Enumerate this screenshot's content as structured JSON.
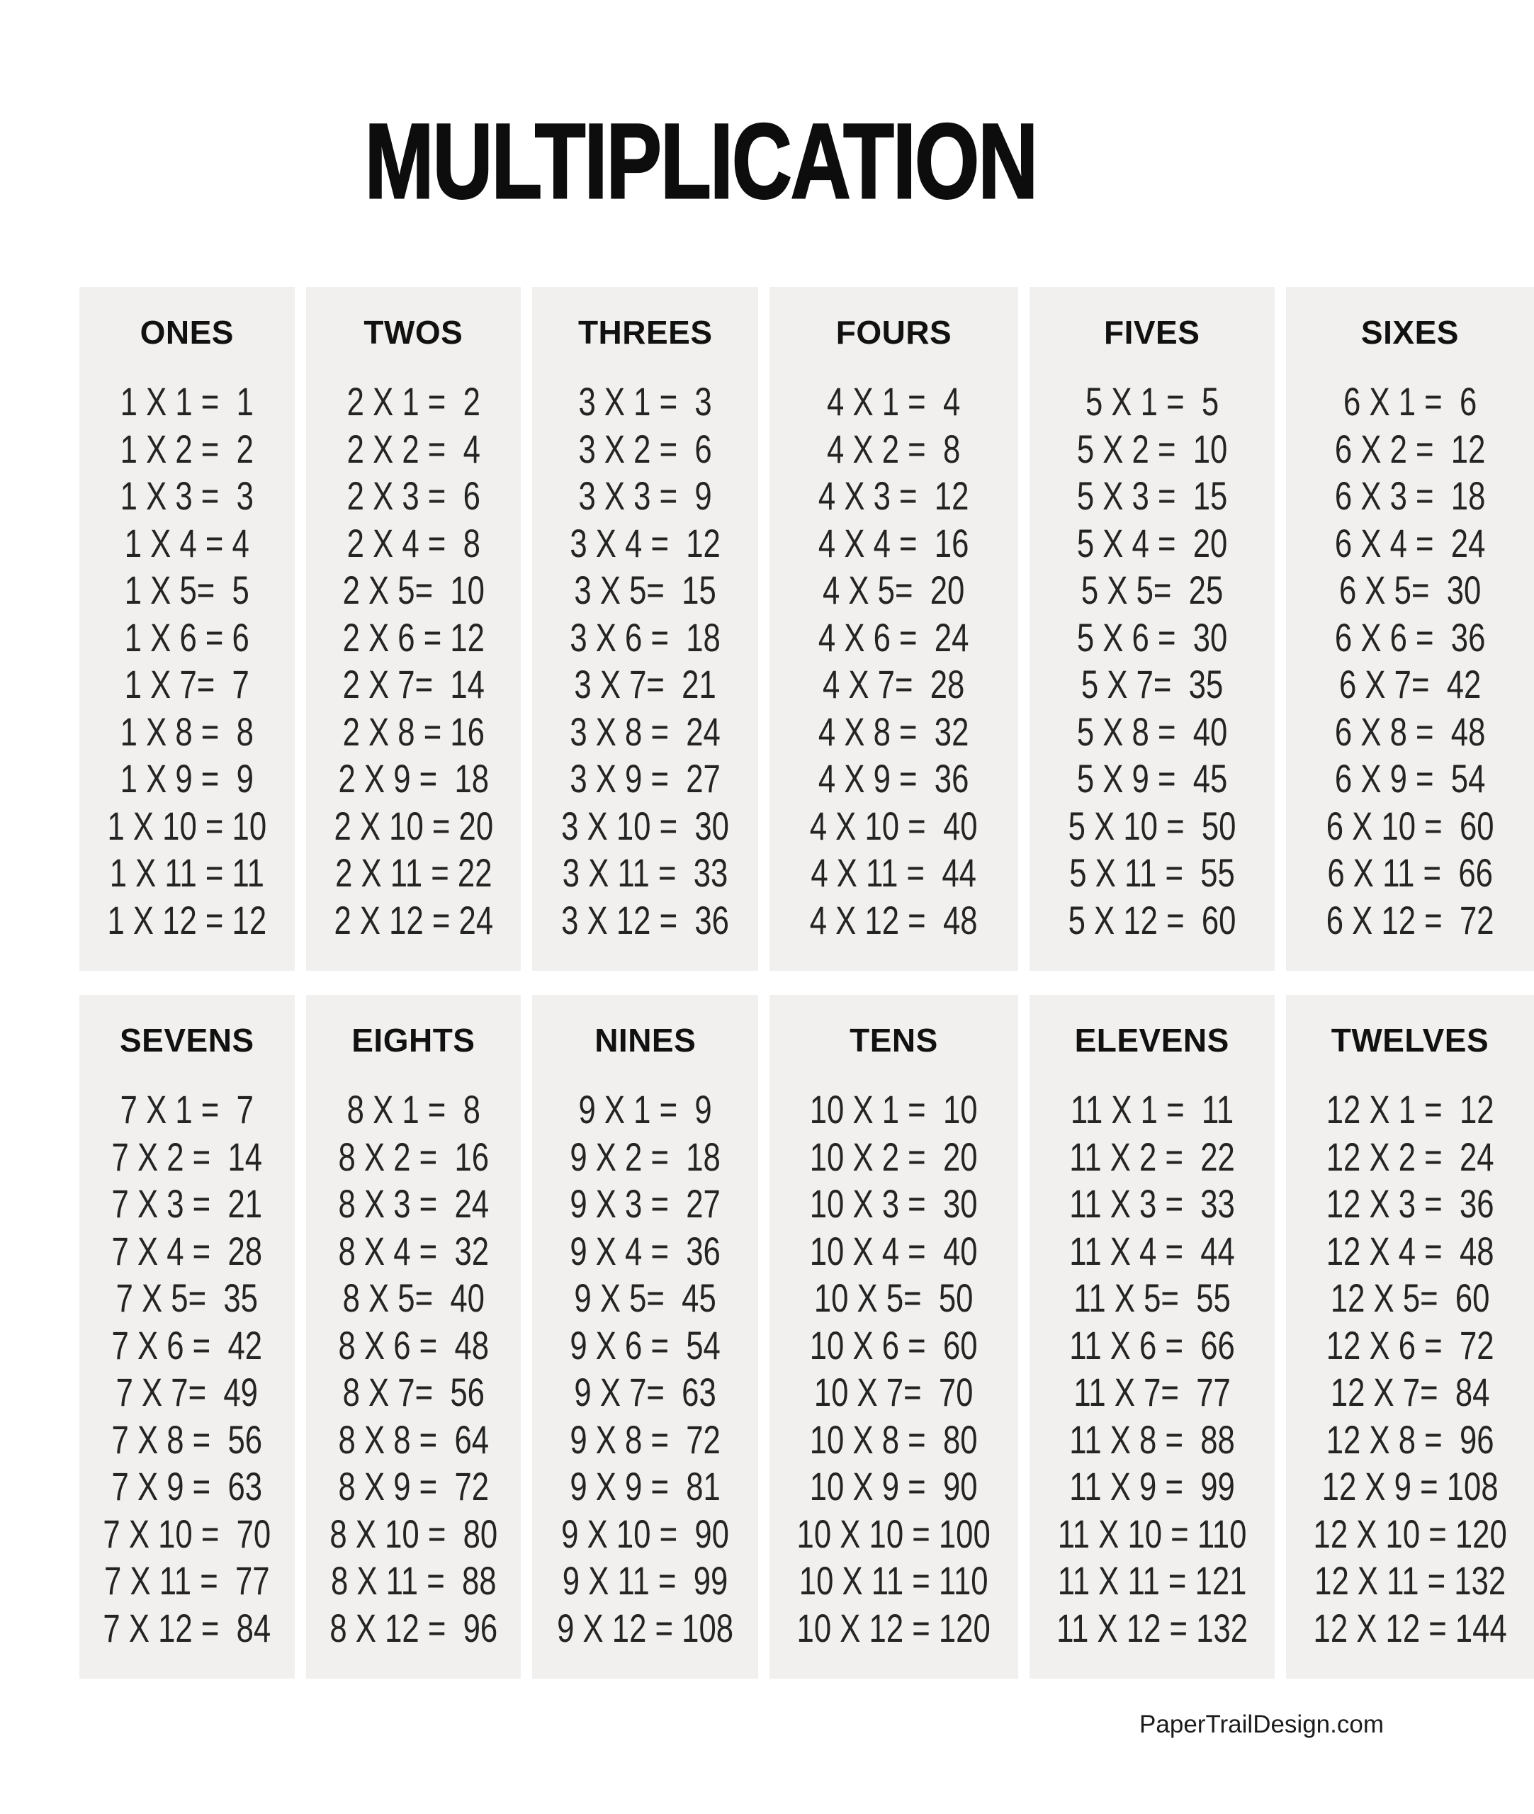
{
  "title": "MULTIPLICATION",
  "footer": {
    "credit": "PaperTrailDesign.com"
  },
  "colors": {
    "page_bg": "#ffffff",
    "panel_bg": "#f1f0ee",
    "title_text": "#0d0d0d",
    "body_text": "#242424"
  },
  "groups": [
    {
      "heading": "ONES",
      "equations": [
        "1 X 1 =  1",
        "1 X 2 =  2",
        "1 X 3 =  3",
        "1 X 4 = 4",
        "1 X 5=  5",
        "1 X 6 = 6",
        "1 X 7=  7",
        "1 X 8 =  8",
        "1 X 9 =  9",
        "1 X 10 = 10",
        "1 X 11 = 11",
        "1 X 12 = 12"
      ]
    },
    {
      "heading": "TWOS",
      "equations": [
        "2 X 1 =  2",
        "2 X 2 =  4",
        "2 X 3 =  6",
        "2 X 4 =  8",
        "2 X 5=  10",
        "2 X 6 = 12",
        "2 X 7=  14",
        "2 X 8 = 16",
        "2 X 9 =  18",
        "2 X 10 = 20",
        "2 X 11 = 22",
        "2 X 12 = 24"
      ]
    },
    {
      "heading": "THREES",
      "equations": [
        "3 X 1 =  3",
        "3 X 2 =  6",
        "3 X 3 =  9",
        "3 X 4 =  12",
        "3 X 5=  15",
        "3 X 6 =  18",
        "3 X 7=  21",
        "3 X 8 =  24",
        "3 X 9 =  27",
        "3 X 10 =  30",
        "3 X 11 =  33",
        "3 X 12 =  36"
      ]
    },
    {
      "heading": "FOURS",
      "equations": [
        "4 X 1 =  4",
        "4 X 2 =  8",
        "4 X 3 =  12",
        "4 X 4 =  16",
        "4 X 5=  20",
        "4 X 6 =  24",
        "4 X 7=  28",
        "4 X 8 =  32",
        "4 X 9 =  36",
        "4 X 10 =  40",
        "4 X 11 =  44",
        "4 X 12 =  48"
      ]
    },
    {
      "heading": "FIVES",
      "equations": [
        "5 X 1 =  5",
        "5 X 2 =  10",
        "5 X 3 =  15",
        "5 X 4 =  20",
        "5 X 5=  25",
        "5 X 6 =  30",
        "5 X 7=  35",
        "5 X 8 =  40",
        "5 X 9 =  45",
        "5 X 10 =  50",
        "5 X 11 =  55",
        "5 X 12 =  60"
      ]
    },
    {
      "heading": "SIXES",
      "equations": [
        "6 X 1 =  6",
        "6 X 2 =  12",
        "6 X 3 =  18",
        "6 X 4 =  24",
        "6 X 5=  30",
        "6 X 6 =  36",
        "6 X 7=  42",
        "6 X 8 =  48",
        "6 X 9 =  54",
        "6 X 10 =  60",
        "6 X 11 =  66",
        "6 X 12 =  72"
      ]
    },
    {
      "heading": "SEVENS",
      "equations": [
        "7 X 1 =  7",
        "7 X 2 =  14",
        "7 X 3 =  21",
        "7 X 4 =  28",
        "7 X 5=  35",
        "7 X 6 =  42",
        "7 X 7=  49",
        "7 X 8 =  56",
        "7 X 9 =  63",
        "7 X 10 =  70",
        "7 X 11 =  77",
        "7 X 12 =  84"
      ]
    },
    {
      "heading": "EIGHTS",
      "equations": [
        "8 X 1 =  8",
        "8 X 2 =  16",
        "8 X 3 =  24",
        "8 X 4 =  32",
        "8 X 5=  40",
        "8 X 6 =  48",
        "8 X 7=  56",
        "8 X 8 =  64",
        "8 X 9 =  72",
        "8 X 10 =  80",
        "8 X 11 =  88",
        "8 X 12 =  96"
      ]
    },
    {
      "heading": "NINES",
      "equations": [
        "9 X 1 =  9",
        "9 X 2 =  18",
        "9 X 3 =  27",
        "9 X 4 =  36",
        "9 X 5=  45",
        "9 X 6 =  54",
        "9 X 7=  63",
        "9 X 8 =  72",
        "9 X 9 =  81",
        "9 X 10 =  90",
        "9 X 11 =  99",
        "9 X 12 = 108"
      ]
    },
    {
      "heading": "TENS",
      "equations": [
        "10 X 1 =  10",
        "10 X 2 =  20",
        "10 X 3 =  30",
        "10 X 4 =  40",
        "10 X 5=  50",
        "10 X 6 =  60",
        "10 X 7=  70",
        "10 X 8 =  80",
        "10 X 9 =  90",
        "10 X 10 = 100",
        "10 X 11 = 110",
        "10 X 12 = 120"
      ]
    },
    {
      "heading": "ELEVENS",
      "equations": [
        "11 X 1 =  11",
        "11 X 2 =  22",
        "11 X 3 =  33",
        "11 X 4 =  44",
        "11 X 5=  55",
        "11 X 6 =  66",
        "11 X 7=  77",
        "11 X 8 =  88",
        "11 X 9 =  99",
        "11 X 10 = 110",
        "11 X 11 = 121",
        "11 X 12 = 132"
      ]
    },
    {
      "heading": "TWELVES",
      "equations": [
        "12 X 1 =  12",
        "12 X 2 =  24",
        "12 X 3 =  36",
        "12 X 4 =  48",
        "12 X 5=  60",
        "12 X 6 =  72",
        "12 X 7=  84",
        "12 X 8 =  96",
        "12 X 9 = 108",
        "12 X 10 = 120",
        "12 X 11 = 132",
        "12 X 12 = 144"
      ]
    }
  ]
}
